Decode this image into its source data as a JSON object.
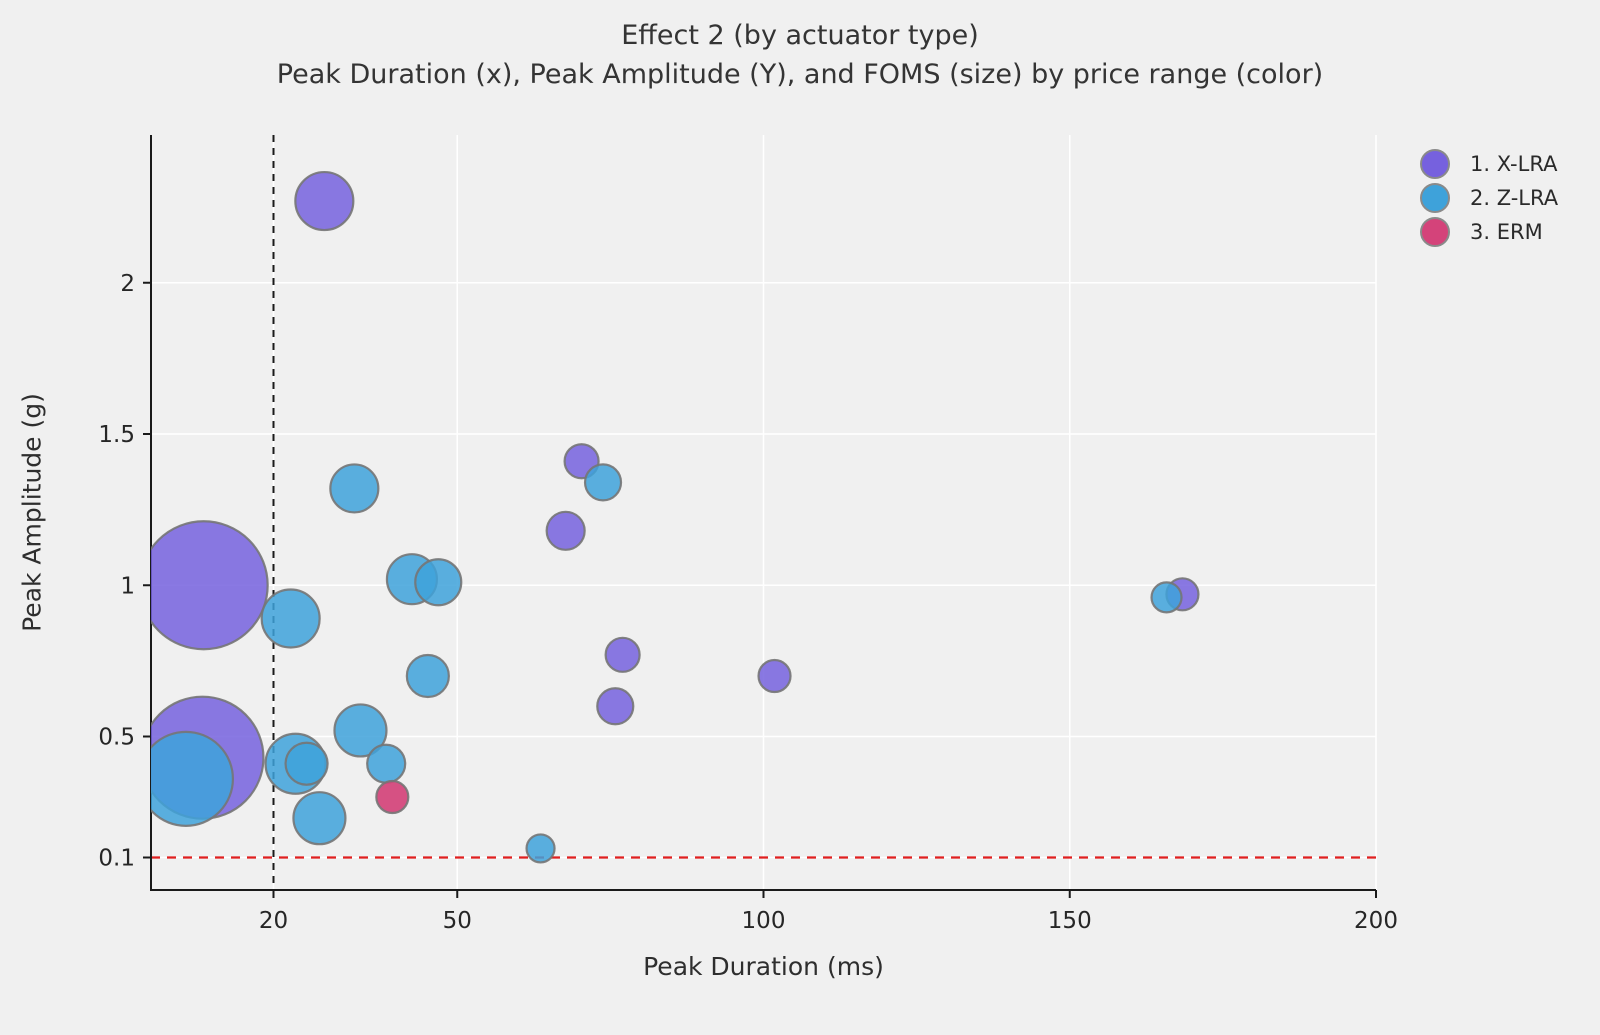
{
  "title": "Effect 2 (by actuator type)",
  "subtitle": "Peak Duration (x), Peak Amplitude (Y), and FOMS (size) by price range (color)",
  "chart_data": {
    "type": "scatter",
    "title": "Effect 2 (by actuator type)",
    "subtitle": "Peak Duration (x), Peak Amplitude (Y), and FOMS (size) by price range (color)",
    "xlabel": "Peak Duration (ms)",
    "ylabel": "Peak Amplitude (g)",
    "xlim": [
      0,
      200
    ],
    "ylim": [
      0,
      2.49
    ],
    "x_ticks": [
      20,
      50,
      100,
      150,
      200
    ],
    "x_tick_labels": [
      "20",
      "50",
      "100",
      "150",
      "200"
    ],
    "y_ticks": [
      0.1,
      0.5,
      1,
      1.5,
      2
    ],
    "y_tick_labels": [
      "0.1",
      "0.5",
      "1",
      "1.5",
      "2"
    ],
    "grid": true,
    "gridline_color": "#ffffff",
    "background_color": "#f0f0f0",
    "legend_position": "top-right",
    "size_encoding": "FOMS",
    "reference_lines": [
      {
        "axis": "x",
        "value": 20,
        "style": "dashed",
        "color": "#1a1a1a"
      },
      {
        "axis": "y",
        "value": 0.1,
        "style": "dashed",
        "color": "#e01f1f"
      }
    ],
    "series": [
      {
        "name": "1. X-LRA",
        "color": "#7661de",
        "fill_opacity": 0.85,
        "points": [
          {
            "x": 28.3,
            "y": 2.27,
            "r": 29
          },
          {
            "x": 70.3,
            "y": 1.41,
            "r": 17
          },
          {
            "x": 67.7,
            "y": 1.18,
            "r": 19
          },
          {
            "x": 8.6,
            "y": 1.0,
            "r": 64
          },
          {
            "x": 77.0,
            "y": 0.77,
            "r": 17
          },
          {
            "x": 75.8,
            "y": 0.6,
            "r": 18
          },
          {
            "x": 101.8,
            "y": 0.7,
            "r": 16
          },
          {
            "x": 168.4,
            "y": 0.97,
            "r": 16
          },
          {
            "x": 8.4,
            "y": 0.43,
            "r": 61
          }
        ]
      },
      {
        "name": "2. Z-LRA",
        "color": "#3ea2da",
        "fill_opacity": 0.85,
        "points": [
          {
            "x": 73.8,
            "y": 1.34,
            "r": 18
          },
          {
            "x": 33.2,
            "y": 1.32,
            "r": 24
          },
          {
            "x": 42.6,
            "y": 1.02,
            "r": 25
          },
          {
            "x": 46.9,
            "y": 1.01,
            "r": 23
          },
          {
            "x": 22.8,
            "y": 0.89,
            "r": 29
          },
          {
            "x": 45.2,
            "y": 0.7,
            "r": 21
          },
          {
            "x": 34.2,
            "y": 0.52,
            "r": 26
          },
          {
            "x": 23.6,
            "y": 0.41,
            "r": 30
          },
          {
            "x": 25.4,
            "y": 0.41,
            "r": 21
          },
          {
            "x": 38.4,
            "y": 0.41,
            "r": 19
          },
          {
            "x": 27.5,
            "y": 0.23,
            "r": 26
          },
          {
            "x": 5.7,
            "y": 0.36,
            "r": 47
          },
          {
            "x": 63.6,
            "y": 0.13,
            "r": 14
          },
          {
            "x": 165.8,
            "y": 0.96,
            "r": 15
          }
        ]
      },
      {
        "name": "3. ERM",
        "color": "#d4437a",
        "fill_opacity": 0.92,
        "points": [
          {
            "x": 39.4,
            "y": 0.3,
            "r": 16
          }
        ]
      }
    ]
  }
}
